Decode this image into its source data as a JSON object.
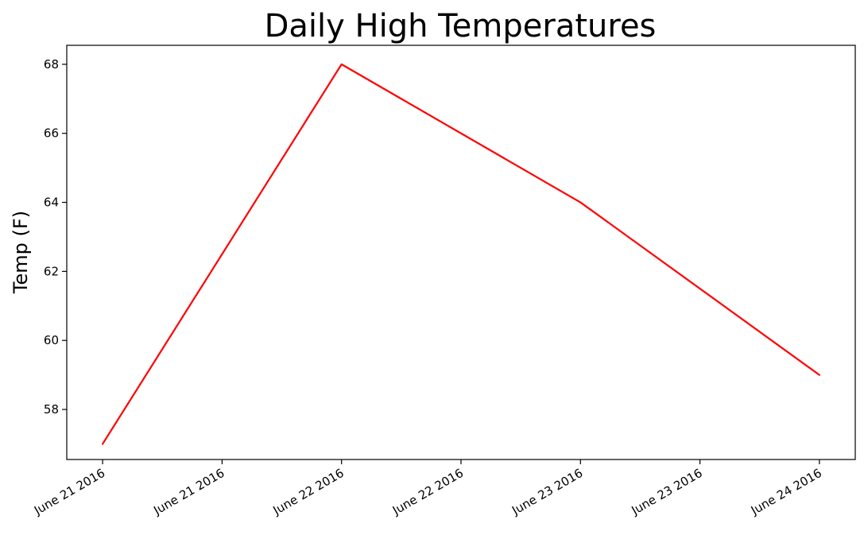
{
  "chart_data": {
    "type": "line",
    "title": "Daily High Temperatures",
    "xlabel": "",
    "ylabel": "Temp (F)",
    "x": [
      "June 21 2016",
      "June 22 2016",
      "June 23 2016",
      "June 24 2016"
    ],
    "x_tick_labels": [
      "June 21 2016",
      "June 21 2016",
      "June 22 2016",
      "June 22 2016",
      "June 23 2016",
      "June 23 2016",
      "June 24 2016"
    ],
    "y_ticks": [
      58,
      60,
      62,
      64,
      66,
      68
    ],
    "ylim": [
      56.55,
      68.55
    ],
    "grid": false,
    "series": [
      {
        "values": [
          57,
          68,
          64,
          59
        ],
        "color": "#ff0000"
      }
    ]
  }
}
